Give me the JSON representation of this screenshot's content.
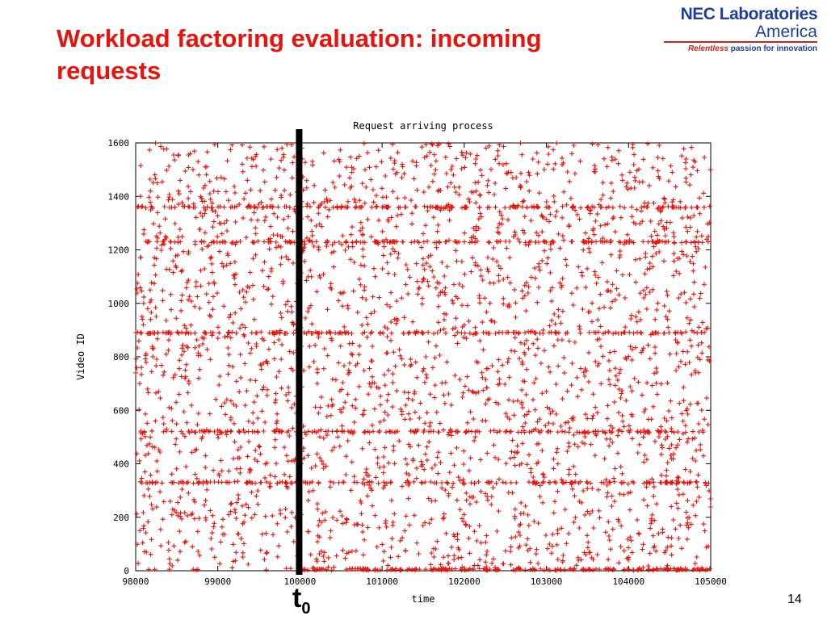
{
  "slide": {
    "title": "Workload factoring evaluation: incoming requests",
    "page_number": "14",
    "t0_label": "t",
    "t0_sub": "0"
  },
  "logo": {
    "line1": "NEC Laboratories",
    "line2": "America",
    "tagline_accent": "Relentless",
    "tagline_rest": " passion for innovation"
  },
  "colors": {
    "title": "#e8130d",
    "points": "#e8130d",
    "marker_line": "#000000"
  },
  "chart_data": {
    "type": "scatter",
    "title": "Request arriving process",
    "xlabel": "time",
    "ylabel": "Video ID",
    "xlim": [
      98000,
      105000
    ],
    "ylim": [
      0,
      1600
    ],
    "xticks": [
      "98000",
      "99000",
      "100000",
      "101000",
      "102000",
      "103000",
      "104000",
      "105000"
    ],
    "yticks": [
      "0",
      "200",
      "400",
      "600",
      "800",
      "1000",
      "1200",
      "1400",
      "1600"
    ],
    "marker": "+",
    "grid": false,
    "series": [
      {
        "points": [
          [
            98050,
            150
          ],
          [
            98180,
            1420
          ],
          [
            98240,
            560
          ],
          [
            98330,
            1010
          ],
          [
            98420,
            260
          ],
          [
            98510,
            1180
          ],
          [
            98600,
            720
          ],
          [
            98690,
            90
          ],
          [
            98760,
            1530
          ],
          [
            98850,
            430
          ],
          [
            98930,
            880
          ],
          [
            99020,
            1300
          ],
          [
            99110,
            640
          ],
          [
            99190,
            35
          ],
          [
            99280,
            980
          ],
          [
            99360,
            1460
          ],
          [
            99450,
            210
          ],
          [
            99530,
            770
          ],
          [
            99620,
            1100
          ],
          [
            99700,
            490
          ],
          [
            99780,
            1580
          ],
          [
            99850,
            310
          ],
          [
            99920,
            920
          ],
          [
            100050,
            1210
          ],
          [
            100130,
            60
          ],
          [
            100210,
            700
          ],
          [
            100300,
            1380
          ],
          [
            100390,
            450
          ],
          [
            100470,
            1010
          ],
          [
            100560,
            180
          ],
          [
            100640,
            850
          ],
          [
            100720,
            1550
          ],
          [
            100810,
            380
          ],
          [
            100900,
            1130
          ],
          [
            100980,
            620
          ],
          [
            101070,
            20
          ],
          [
            101150,
            940
          ],
          [
            101240,
            1470
          ],
          [
            101320,
            270
          ],
          [
            101410,
            780
          ],
          [
            101500,
            1260
          ],
          [
            101580,
            540
          ],
          [
            101670,
            110
          ],
          [
            101760,
            1040
          ],
          [
            101840,
            1500
          ],
          [
            101930,
            350
          ],
          [
            102010,
            690
          ],
          [
            102100,
            1170
          ],
          [
            102190,
            860
          ],
          [
            102270,
            15
          ],
          [
            102360,
            470
          ],
          [
            102450,
            1330
          ],
          [
            102530,
            990
          ],
          [
            102620,
            230
          ],
          [
            102710,
            610
          ],
          [
            102790,
            1420
          ],
          [
            102880,
            80
          ],
          [
            102960,
            900
          ],
          [
            103050,
            1220
          ],
          [
            103140,
            400
          ],
          [
            103220,
            740
          ],
          [
            103310,
            1560
          ],
          [
            103400,
            160
          ],
          [
            103480,
            1060
          ],
          [
            103570,
            580
          ],
          [
            103660,
            1290
          ],
          [
            103740,
            320
          ],
          [
            103830,
            820
          ],
          [
            103920,
            1480
          ],
          [
            104000,
            50
          ],
          [
            104090,
            950
          ],
          [
            104180,
            500
          ],
          [
            104260,
            1150
          ],
          [
            104350,
            660
          ],
          [
            104440,
            1390
          ],
          [
            104520,
            240
          ],
          [
            104610,
            1020
          ],
          [
            104700,
            1540
          ],
          [
            104780,
            420
          ],
          [
            104870,
            790
          ],
          [
            104950,
            1240
          ]
        ]
      }
    ],
    "dense_bands_video_id": [
      5,
      330,
      520,
      890,
      1230,
      1360
    ],
    "marker_line_x": 100000
  }
}
